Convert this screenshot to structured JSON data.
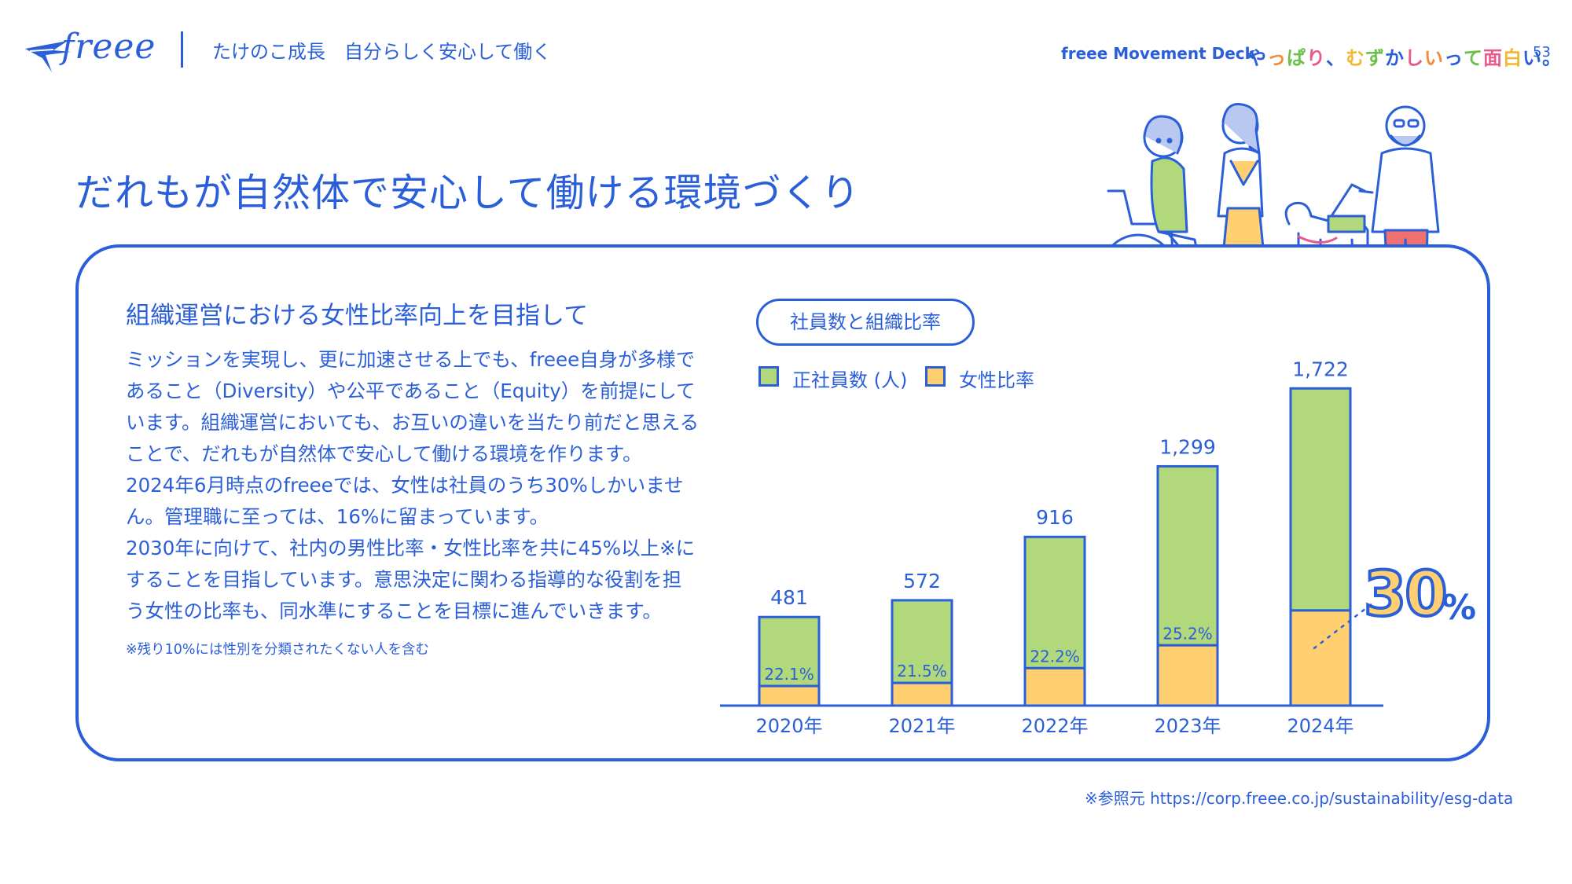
{
  "header": {
    "logo_text": "freee",
    "subtitle": "たけのこ成長　自分らしく安心して働く",
    "deck_name": "freee Movement Deck",
    "tagline": "やっぱり、むずかしいって面白い。",
    "tagline_colors": [
      "#2b5fd9",
      "#f28b3a",
      "#6cc04a",
      "#e85a8a",
      "#2b5fd9",
      "#f2b830",
      "#6cc04a",
      "#2b5fd9",
      "#e85a8a",
      "#f28b3a",
      "#2b5fd9",
      "#6cc04a",
      "#e85a8a",
      "#f2b830",
      "#2b5fd9"
    ],
    "page_number": "53"
  },
  "main_title": "だれもが自然体で安心して働ける環境づくり",
  "section": {
    "heading": "組織運営における女性比率向上を目指して",
    "paragraphs": [
      "ミッションを実現し、更に加速させる上でも、freee自身が多様であること（Diversity）や公平であること（Equity）を前提にしています。組織運営においても、お互いの違いを当たり前だと思えることで、だれもが自然体で安心して働ける環境を作ります。",
      "2024年6月時点のfreeeでは、女性は社員のうち30%しかいません。管理職に至っては、16%に留まっています。",
      "2030年に向けて、社内の男性比率・女性比率を共に45%以上※にすることを目指しています。意思決定に関わる指導的な役割を担う女性の比率も、同水準にすることを目標に進んでいきます。"
    ],
    "footnote": "※残り10%には性別を分類されたくない人を含む"
  },
  "chart_badge": "社員数と組織比率",
  "legend": {
    "employees": "正社員数 (人)",
    "women": "女性比率"
  },
  "highlight": {
    "value": "30",
    "unit": "%"
  },
  "reference": "※参照元 https://corp.freee.co.jp/sustainability/esg-data",
  "colors": {
    "brand_blue": "#2b5fd9",
    "employees_green": "#b1d87a",
    "women_yellow": "#ffcf70"
  },
  "chart_data": {
    "type": "bar",
    "categories": [
      "2020年",
      "2021年",
      "2022年",
      "2023年",
      "2024年"
    ],
    "series": [
      {
        "name": "正社員数 (人)",
        "values": [
          481,
          572,
          916,
          1299,
          1722
        ],
        "labels": [
          "481",
          "572",
          "916",
          "1,299",
          "1,722"
        ]
      },
      {
        "name": "女性比率",
        "values": [
          22.1,
          21.5,
          22.2,
          25.2,
          30
        ],
        "labels": [
          "22.1%",
          "21.5%",
          "22.2%",
          "25.2%",
          ""
        ]
      }
    ],
    "stacked_note": "women share drawn as lower yellow segment of each bar",
    "ylim": [
      0,
      1800
    ],
    "grid": false,
    "legend_position": "top-left"
  }
}
